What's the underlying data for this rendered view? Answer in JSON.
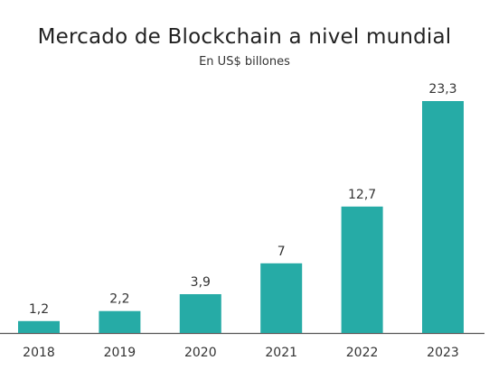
{
  "chart_data": {
    "type": "bar",
    "title": "Mercado de Blockchain a nivel mundial",
    "subtitle": "En US$ billones",
    "categories": [
      "2018",
      "2019",
      "2020",
      "2021",
      "2022",
      "2023"
    ],
    "values": [
      1.2,
      2.2,
      3.9,
      7,
      12.7,
      23.3
    ],
    "data_labels": [
      "1,2",
      "2,2",
      "3,9",
      "7",
      "12,7",
      "23,3"
    ],
    "xlabel": "",
    "ylabel": "",
    "ylim": [
      0,
      23.3
    ],
    "grid": false,
    "legend": "none",
    "bar_color": "#26aba6",
    "axis_color": "#555555"
  }
}
